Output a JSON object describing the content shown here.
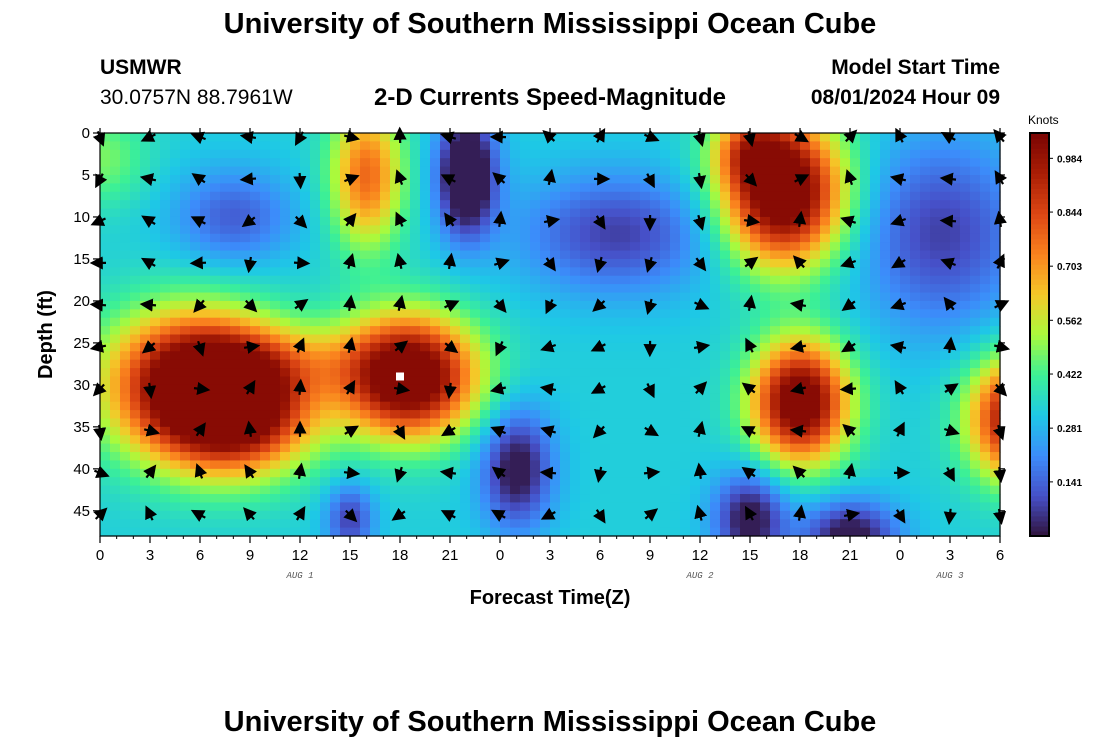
{
  "header": {
    "title": "University of Southern Mississippi Ocean Cube",
    "station": "USMWR",
    "coords": "30.0757N  88.7961W",
    "plot_title": "2-D Currents Speed-Magnitude",
    "model_label": "Model Start Time",
    "model_time": "08/01/2024 Hour 09"
  },
  "footer": {
    "title": "University of Southern Mississippi Ocean Cube"
  },
  "chart_data": {
    "type": "heatmap",
    "title": "2-D Currents Speed-Magnitude",
    "xlabel": "Forecast Time(Z)",
    "ylabel": "Depth (ft)",
    "x_range": [
      0,
      54
    ],
    "y_range": [
      0,
      48
    ],
    "x_ticks": [
      0,
      3,
      6,
      9,
      12,
      15,
      18,
      21,
      24,
      27,
      30,
      33,
      36,
      39,
      42,
      45,
      48,
      51,
      54
    ],
    "x_tick_labels": [
      "0",
      "3",
      "6",
      "9",
      "12",
      "15",
      "18",
      "21",
      "0",
      "3",
      "6",
      "9",
      "12",
      "15",
      "18",
      "21",
      "0",
      "3",
      "6"
    ],
    "y_ticks": [
      0,
      5,
      10,
      15,
      20,
      25,
      30,
      35,
      40,
      45
    ],
    "y_tick_labels": [
      "0",
      "5",
      "10",
      "15",
      "20",
      "25",
      "30",
      "35",
      "40",
      "45"
    ],
    "date_labels": [
      {
        "x": 12,
        "text": "AUG 1"
      },
      {
        "x": 36,
        "text": "AUG 2"
      },
      {
        "x": 51,
        "text": "AUG 3"
      }
    ],
    "colorbar": {
      "label": "Knots",
      "range": [
        0.0,
        1.05
      ],
      "ticks": [
        0.984,
        0.844,
        0.703,
        0.562,
        0.422,
        0.281,
        0.141
      ],
      "tick_labels": [
        "0.984",
        "0.844",
        "0.703",
        "0.562",
        "0.422",
        "0.281",
        "0.141"
      ]
    },
    "speed_features": [
      {
        "t": 5.5,
        "d": 30,
        "st": 3.5,
        "sd": 6,
        "amp": 0.75
      },
      {
        "t": 18.5,
        "d": 29,
        "st": 2.8,
        "sd": 5,
        "amp": 0.85
      },
      {
        "t": 16,
        "d": 5,
        "st": 1.5,
        "sd": 6,
        "amp": 0.45
      },
      {
        "t": 8.5,
        "d": 33,
        "st": 3,
        "sd": 5,
        "amp": 0.6
      },
      {
        "t": 41,
        "d": 7,
        "st": 2.5,
        "sd": 6,
        "amp": 0.85
      },
      {
        "t": 39,
        "d": 2,
        "st": 1.5,
        "sd": 3,
        "amp": 0.3
      },
      {
        "t": 42,
        "d": 32,
        "st": 2,
        "sd": 5,
        "amp": 0.8
      },
      {
        "t": 55,
        "d": 34,
        "st": 2,
        "sd": 5,
        "amp": 0.7
      },
      {
        "t": 11,
        "d": 27,
        "st": 4,
        "sd": 3,
        "amp": 0.15
      },
      {
        "t": 0,
        "d": 3,
        "st": 2,
        "sd": 4,
        "amp": 0.15
      }
    ],
    "calm_features": [
      {
        "t": 8,
        "d": 10,
        "st": 2.5,
        "sd": 4,
        "amp": 0.2
      },
      {
        "t": 22,
        "d": 5,
        "st": 1.2,
        "sd": 5,
        "amp": 0.5
      },
      {
        "t": 25,
        "d": 40,
        "st": 1.5,
        "sd": 5,
        "amp": 0.35
      },
      {
        "t": 31,
        "d": 12,
        "st": 4,
        "sd": 5,
        "amp": 0.25
      },
      {
        "t": 50.5,
        "d": 12,
        "st": 3.5,
        "sd": 8,
        "amp": 0.25
      },
      {
        "t": 15,
        "d": 46,
        "st": 1,
        "sd": 3,
        "amp": 0.25
      },
      {
        "t": 39,
        "d": 46,
        "st": 1.5,
        "sd": 4,
        "amp": 0.35
      },
      {
        "t": 45,
        "d": 48,
        "st": 2,
        "sd": 3,
        "amp": 0.35
      }
    ],
    "speed_base": 0.33,
    "vector_grid": {
      "times": [
        0,
        3,
        6,
        9,
        12,
        15,
        18,
        21,
        24,
        27,
        30,
        33,
        36,
        39,
        42,
        45,
        48,
        51,
        54
      ],
      "depths": [
        0,
        5,
        10,
        15,
        20,
        25,
        30,
        35,
        40,
        45
      ]
    },
    "marker": {
      "t": 18,
      "d": 29
    }
  }
}
